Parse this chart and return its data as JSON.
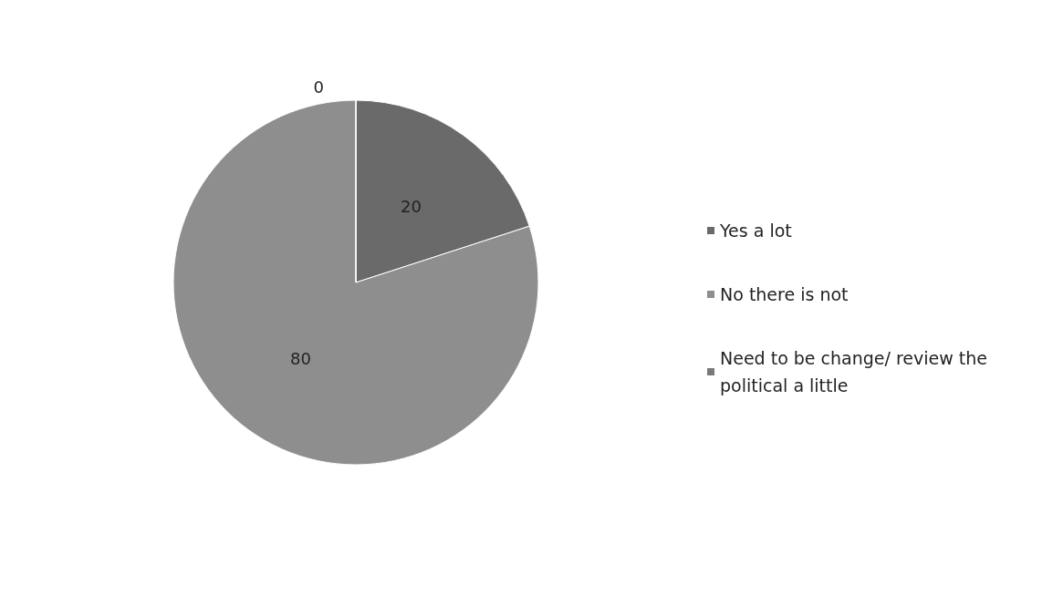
{
  "chart_data": {
    "type": "pie",
    "categories": [
      "Yes a lot",
      "No there is not",
      "Need to be change/ review the political a little"
    ],
    "values": [
      20,
      80,
      0
    ],
    "colors": [
      "#6a6a6a",
      "#8e8e8e",
      "#7a7a7a"
    ],
    "value_labels": [
      "20",
      "80",
      "0"
    ],
    "legend": "right"
  }
}
